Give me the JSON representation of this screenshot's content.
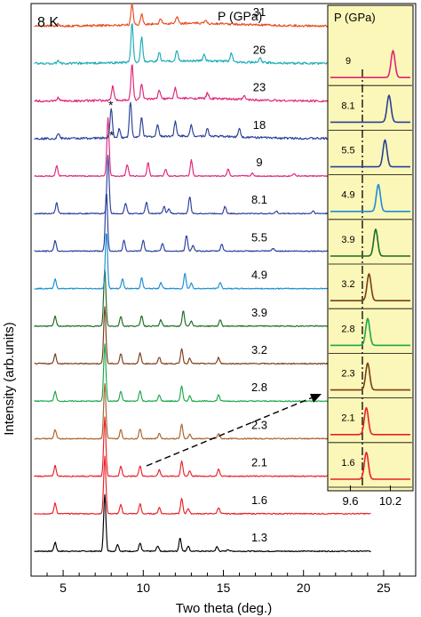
{
  "chart_data": {
    "type": "line",
    "temperature_label": "8 K",
    "pressure_header": "P (GPa)",
    "xlabel": "Two theta (deg.)",
    "ylabel": "Intensity (arb.units)",
    "xlim": [
      3,
      27
    ],
    "x_ticks": [
      5,
      10,
      15,
      20,
      25
    ],
    "peak_marker": "*",
    "series": [
      {
        "name": "1.3",
        "color": "#000000",
        "x_end": 24.2,
        "peaks": [
          [
            4.5,
            10
          ],
          [
            7.6,
            64
          ],
          [
            8.4,
            8
          ],
          [
            9.8,
            9
          ],
          [
            10.9,
            6
          ],
          [
            12.3,
            15
          ],
          [
            12.8,
            6
          ],
          [
            14.6,
            5
          ],
          [
            15.3,
            2
          ]
        ]
      },
      {
        "name": "1.6",
        "color": "#e8202a",
        "x_end": 24.2,
        "peaks": [
          [
            4.5,
            12
          ],
          [
            7.6,
            64
          ],
          [
            8.6,
            10
          ],
          [
            9.8,
            11
          ],
          [
            11.0,
            7
          ],
          [
            12.4,
            17
          ],
          [
            12.8,
            6
          ],
          [
            14.7,
            7
          ]
        ]
      },
      {
        "name": "2.1",
        "color": "#e8202a",
        "x_end": 24.2,
        "peaks": [
          [
            4.5,
            12
          ],
          [
            7.6,
            66
          ],
          [
            8.6,
            11
          ],
          [
            9.8,
            12
          ],
          [
            11.0,
            7
          ],
          [
            12.4,
            17
          ],
          [
            12.9,
            6
          ],
          [
            14.7,
            8
          ]
        ]
      },
      {
        "name": "2.3",
        "color": "#a8632e",
        "x_end": 24.2,
        "peaks": [
          [
            4.5,
            10
          ],
          [
            7.6,
            62
          ],
          [
            8.6,
            10
          ],
          [
            9.8,
            11
          ],
          [
            11.0,
            6
          ],
          [
            12.4,
            16
          ],
          [
            12.9,
            5
          ],
          [
            14.7,
            6
          ]
        ]
      },
      {
        "name": "2.8",
        "color": "#1aa84a",
        "x_end": 24.2,
        "peaks": [
          [
            4.5,
            11
          ],
          [
            7.6,
            64
          ],
          [
            8.6,
            11
          ],
          [
            9.8,
            12
          ],
          [
            11.0,
            7
          ],
          [
            12.4,
            17
          ],
          [
            12.9,
            6
          ],
          [
            14.7,
            7
          ]
        ]
      },
      {
        "name": "3.2",
        "color": "#7a3d18",
        "x_end": 24.2,
        "peaks": [
          [
            4.5,
            11
          ],
          [
            7.6,
            64
          ],
          [
            8.6,
            11
          ],
          [
            9.8,
            12
          ],
          [
            11.0,
            7
          ],
          [
            12.4,
            17
          ],
          [
            12.9,
            6
          ],
          [
            14.7,
            7
          ]
        ]
      },
      {
        "name": "3.9",
        "color": "#1d6b24",
        "x_end": 24.2,
        "peaks": [
          [
            4.5,
            11
          ],
          [
            7.6,
            64
          ],
          [
            8.6,
            11
          ],
          [
            9.9,
            12
          ],
          [
            11.1,
            7
          ],
          [
            12.5,
            17
          ],
          [
            13.0,
            6
          ],
          [
            14.8,
            7
          ]
        ]
      },
      {
        "name": "4.9",
        "color": "#1b8dd4",
        "x_end": 24.2,
        "peaks": [
          [
            4.5,
            11
          ],
          [
            7.7,
            64
          ],
          [
            8.7,
            11
          ],
          [
            9.9,
            12
          ],
          [
            11.1,
            7
          ],
          [
            12.6,
            17
          ],
          [
            13.0,
            6
          ],
          [
            14.8,
            7
          ]
        ]
      },
      {
        "name": "5.5",
        "color": "#2a3f9a",
        "x_end": 24.2,
        "peaks": [
          [
            4.5,
            12
          ],
          [
            7.7,
            66
          ],
          [
            8.8,
            12
          ],
          [
            10.0,
            12
          ],
          [
            11.2,
            8
          ],
          [
            12.7,
            18
          ],
          [
            13.1,
            6
          ],
          [
            14.9,
            8
          ],
          [
            18.1,
            3
          ]
        ]
      },
      {
        "name": "8.1",
        "color": "#2a3f9a",
        "x_end": 24.2,
        "peaks": [
          [
            4.6,
            12
          ],
          [
            7.8,
            66
          ],
          [
            8.9,
            12
          ],
          [
            10.2,
            13
          ],
          [
            11.3,
            8
          ],
          [
            11.6,
            5
          ],
          [
            12.9,
            19
          ],
          [
            15.1,
            8
          ],
          [
            18.3,
            3
          ],
          [
            20.6,
            3
          ]
        ]
      },
      {
        "name": "9",
        "color": "#e0237a",
        "x_end": 24.2,
        "peaks": [
          [
            4.6,
            11
          ],
          [
            7.8,
            66
          ],
          [
            9.0,
            13
          ],
          [
            10.3,
            15
          ],
          [
            11.4,
            8
          ],
          [
            13.0,
            18
          ],
          [
            15.3,
            8
          ],
          [
            16.8,
            3
          ],
          [
            19.4,
            3
          ]
        ]
      },
      {
        "name": "18",
        "color": "#2a3f9a",
        "x_end": 21.6,
        "peaks": [
          [
            4.7,
            6
          ],
          [
            8.0,
            34
          ],
          [
            8.5,
            10
          ],
          [
            9.2,
            40
          ],
          [
            9.9,
            22
          ],
          [
            10.9,
            14
          ],
          [
            12.0,
            16
          ],
          [
            13.0,
            12
          ],
          [
            14.0,
            8
          ],
          [
            16.0,
            10
          ]
        ]
      },
      {
        "name": "23",
        "color": "#e0237a",
        "x_end": 21.6,
        "peaks": [
          [
            4.7,
            4
          ],
          [
            8.1,
            16
          ],
          [
            9.3,
            40
          ],
          [
            9.9,
            18
          ],
          [
            11.0,
            10
          ],
          [
            12.0,
            12
          ],
          [
            14.0,
            6
          ],
          [
            16.3,
            4
          ]
        ]
      },
      {
        "name": "26",
        "color": "#1aacb8",
        "x_end": 21.6,
        "peaks": [
          [
            4.7,
            3
          ],
          [
            9.3,
            44
          ],
          [
            9.9,
            28
          ],
          [
            11.0,
            10
          ],
          [
            12.1,
            12
          ],
          [
            13.8,
            8
          ],
          [
            15.5,
            10
          ],
          [
            17.3,
            5
          ]
        ]
      },
      {
        "name": "31",
        "color": "#e84a1a",
        "x_end": 21.6,
        "peaks": [
          [
            4.7,
            2
          ],
          [
            9.3,
            24
          ],
          [
            9.9,
            12
          ],
          [
            11.1,
            6
          ],
          [
            12.1,
            8
          ],
          [
            13.9,
            4
          ]
        ]
      }
    ],
    "inset": {
      "header": "P (GPa)",
      "x_ticks": [
        9.6,
        10.2
      ],
      "xlim": [
        9.3,
        10.5
      ],
      "dashed_line_x": 9.78,
      "traces": [
        {
          "label": "1.6",
          "color": "#e8202a",
          "peak_x": 9.84
        },
        {
          "label": "2.1",
          "color": "#e8202a",
          "peak_x": 9.84
        },
        {
          "label": "2.3",
          "color": "#7a3d18",
          "peak_x": 9.86
        },
        {
          "label": "2.8",
          "color": "#1aa84a",
          "peak_x": 9.86
        },
        {
          "label": "3.2",
          "color": "#7a3d18",
          "peak_x": 9.88
        },
        {
          "label": "3.9",
          "color": "#1d6b24",
          "peak_x": 9.98
        },
        {
          "label": "4.9",
          "color": "#1b8dd4",
          "peak_x": 10.02
        },
        {
          "label": "5.5",
          "color": "#2a3f9a",
          "peak_x": 10.12
        },
        {
          "label": "8.1",
          "color": "#2a3f9a",
          "peak_x": 10.18
        },
        {
          "label": "9",
          "color": "#e0237a",
          "peak_x": 10.24
        }
      ]
    }
  }
}
